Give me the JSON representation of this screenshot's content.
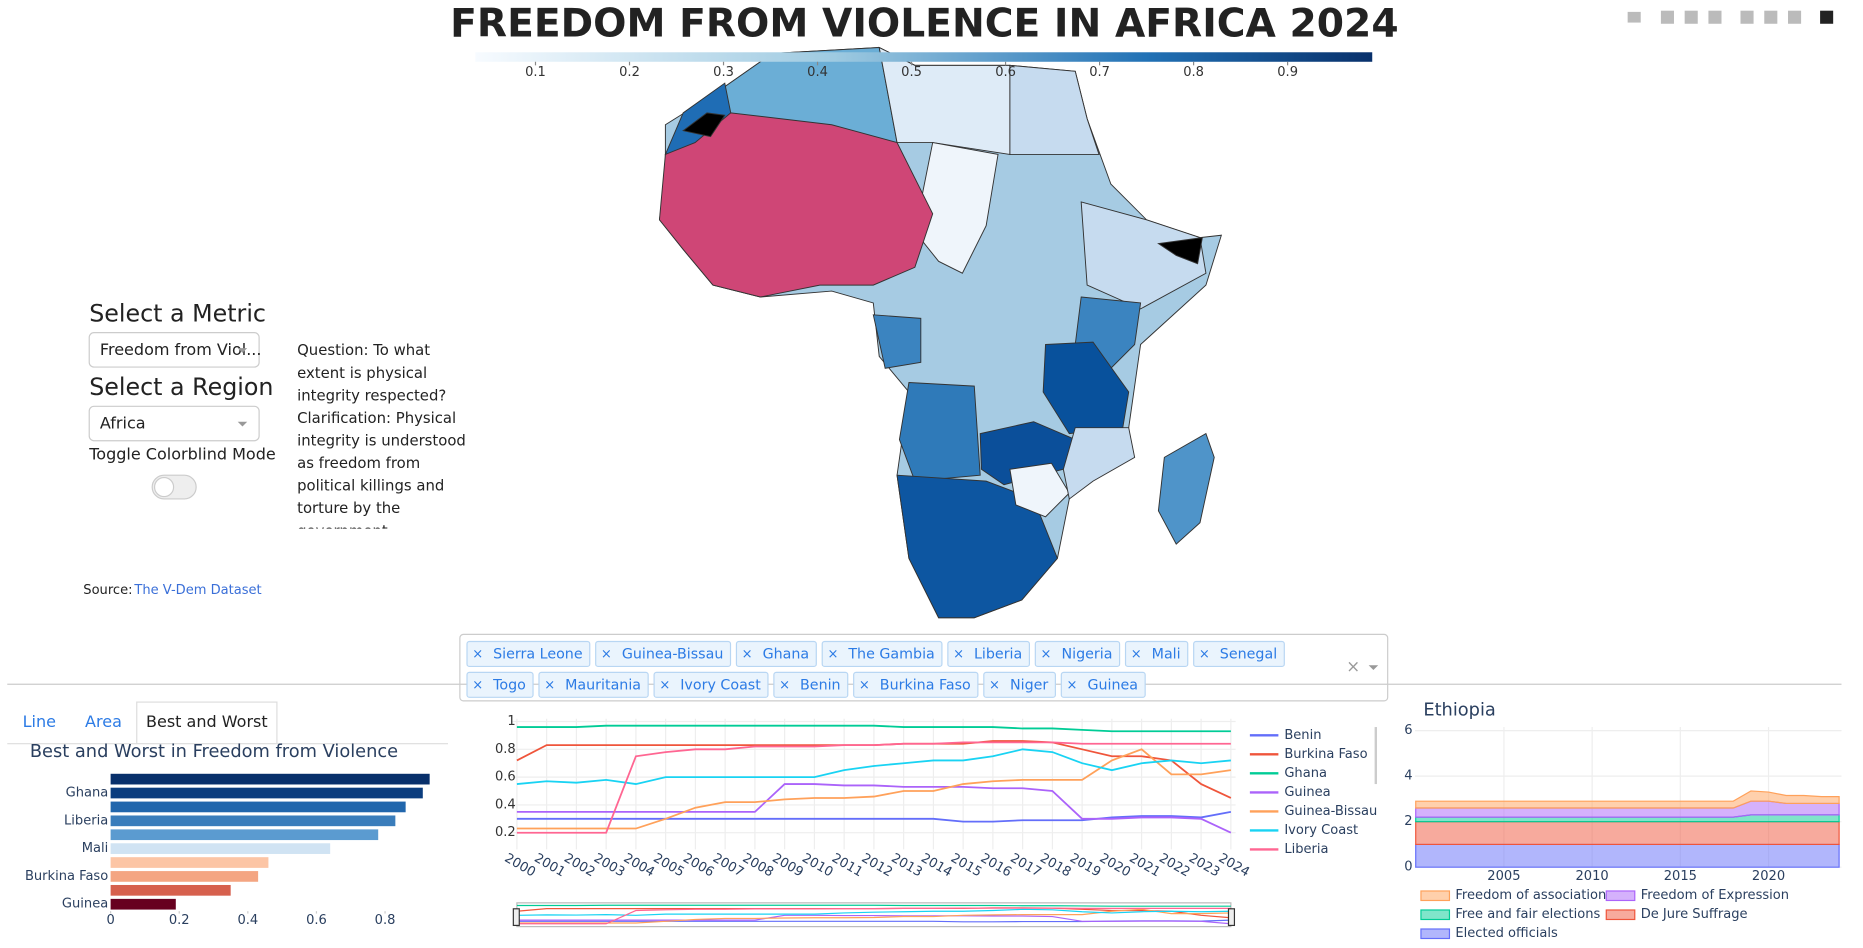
{
  "controls": {
    "metric_label": "Select a Metric",
    "metric_value": "Freedom from Viol...",
    "region_label": "Select a Region",
    "region_value": "Africa",
    "toggle_label": "Toggle Colorblind Mode"
  },
  "question": "Question: To what extent is physical integrity respected? Clarification: Physical integrity is understood as freedom from political killings and torture by the government.",
  "source": {
    "label": "Source:",
    "link": "The V-Dem Dataset"
  },
  "selected_countries": [
    "Sierra Leone",
    "Guinea-Bissau",
    "Ghana",
    "The Gambia",
    "Liberia",
    "Nigeria",
    "Mali",
    "Senegal",
    "Togo",
    "Mauritania",
    "Ivory Coast",
    "Benin",
    "Burkina Faso",
    "Niger",
    "Guinea"
  ],
  "tabs": [
    "Line",
    "Area",
    "Best and Worst"
  ],
  "chart_data": [
    {
      "type": "choropleth",
      "title": "FREEDOM FROM VIOLENCE IN AFRICA 2024",
      "colorbar_lim": [
        0.036,
        0.99
      ],
      "colorbar_ticks": [
        0.1,
        0.2,
        0.3,
        0.4,
        0.5,
        0.6,
        0.7,
        0.8,
        0.9
      ]
    },
    {
      "type": "bar",
      "orientation": "horizontal",
      "title": "Best and Worst in Freedom from Violence",
      "categories": [
        null,
        "Ghana",
        null,
        "Liberia",
        null,
        "Mali",
        null,
        "Burkina Faso",
        null,
        "Guinea"
      ],
      "values": [
        0.93,
        0.91,
        0.86,
        0.83,
        0.78,
        0.64,
        0.46,
        0.43,
        0.35,
        0.19
      ],
      "colors": [
        "#08306b",
        "#0b3d7e",
        "#2166ac",
        "#3a7dbb",
        "#5b9bd0",
        "#d0e3f3",
        "#fcc5a5",
        "#f4a582",
        "#d6604d",
        "#67001f"
      ],
      "xlim": [
        0,
        0.98
      ],
      "xticks": [
        0,
        0.2,
        0.4,
        0.6,
        0.8
      ]
    },
    {
      "type": "line",
      "x": [
        2000,
        2001,
        2002,
        2003,
        2004,
        2005,
        2006,
        2007,
        2008,
        2009,
        2010,
        2011,
        2012,
        2013,
        2014,
        2015,
        2016,
        2017,
        2018,
        2019,
        2020,
        2021,
        2022,
        2023,
        2024
      ],
      "xlim": [
        2000,
        2024
      ],
      "ylim": [
        0.08,
        1.02
      ],
      "yticks": [
        0.2,
        0.4,
        0.6,
        0.8,
        1
      ],
      "grid": true,
      "series": [
        {
          "name": "Benin",
          "color": "#636efa",
          "values": [
            0.3,
            0.3,
            0.3,
            0.3,
            0.3,
            0.3,
            0.3,
            0.3,
            0.3,
            0.3,
            0.3,
            0.3,
            0.3,
            0.3,
            0.3,
            0.28,
            0.28,
            0.29,
            0.29,
            0.29,
            0.31,
            0.32,
            0.32,
            0.31,
            0.35
          ]
        },
        {
          "name": "Burkina Faso",
          "color": "#ef553b",
          "values": [
            0.72,
            0.83,
            0.83,
            0.83,
            0.83,
            0.83,
            0.83,
            0.83,
            0.83,
            0.83,
            0.83,
            0.83,
            0.83,
            0.84,
            0.84,
            0.84,
            0.86,
            0.86,
            0.85,
            0.8,
            0.75,
            0.75,
            0.72,
            0.55,
            0.45
          ]
        },
        {
          "name": "Ghana",
          "color": "#00cc96",
          "values": [
            0.96,
            0.96,
            0.96,
            0.97,
            0.97,
            0.97,
            0.97,
            0.97,
            0.97,
            0.97,
            0.97,
            0.97,
            0.97,
            0.96,
            0.96,
            0.96,
            0.96,
            0.95,
            0.95,
            0.94,
            0.93,
            0.93,
            0.93,
            0.93,
            0.93
          ]
        },
        {
          "name": "Guinea",
          "color": "#ab63fa",
          "values": [
            0.35,
            0.35,
            0.35,
            0.35,
            0.35,
            0.35,
            0.35,
            0.35,
            0.35,
            0.55,
            0.55,
            0.54,
            0.54,
            0.53,
            0.53,
            0.53,
            0.52,
            0.52,
            0.5,
            0.3,
            0.3,
            0.31,
            0.31,
            0.3,
            0.2
          ]
        },
        {
          "name": "Guinea-Bissau",
          "color": "#ffa15a",
          "values": [
            0.23,
            0.23,
            0.23,
            0.23,
            0.23,
            0.3,
            0.38,
            0.42,
            0.42,
            0.44,
            0.45,
            0.45,
            0.46,
            0.5,
            0.5,
            0.55,
            0.57,
            0.58,
            0.58,
            0.58,
            0.72,
            0.8,
            0.62,
            0.62,
            0.65
          ]
        },
        {
          "name": "Ivory Coast",
          "color": "#19d3f3",
          "values": [
            0.55,
            0.57,
            0.56,
            0.58,
            0.55,
            0.6,
            0.6,
            0.6,
            0.6,
            0.6,
            0.6,
            0.65,
            0.68,
            0.7,
            0.72,
            0.72,
            0.75,
            0.8,
            0.78,
            0.7,
            0.65,
            0.7,
            0.72,
            0.7,
            0.72
          ]
        },
        {
          "name": "Liberia",
          "color": "#ff6692",
          "values": [
            0.2,
            0.2,
            0.2,
            0.2,
            0.75,
            0.78,
            0.8,
            0.8,
            0.82,
            0.82,
            0.82,
            0.83,
            0.83,
            0.84,
            0.84,
            0.85,
            0.85,
            0.85,
            0.85,
            0.84,
            0.84,
            0.84,
            0.84,
            0.84,
            0.84
          ]
        }
      ]
    },
    {
      "type": "area",
      "title": "Ethiopia",
      "x": [
        2000,
        2001,
        2002,
        2003,
        2004,
        2005,
        2006,
        2007,
        2008,
        2009,
        2010,
        2011,
        2012,
        2013,
        2014,
        2015,
        2016,
        2017,
        2018,
        2019,
        2020,
        2021,
        2022,
        2023,
        2024
      ],
      "xlim": [
        2000,
        2024
      ],
      "xticks": [
        2005,
        2010,
        2015,
        2020
      ],
      "ylim": [
        0,
        6
      ],
      "yticks": [
        0,
        2,
        4,
        6
      ],
      "grid": true,
      "series": [
        {
          "name": "Elected officials",
          "color": "#636efa",
          "values": [
            1,
            1,
            1,
            1,
            1,
            1,
            1,
            1,
            1,
            1,
            1,
            1,
            1,
            1,
            1,
            1,
            1,
            1,
            1,
            1,
            1,
            1,
            1,
            1,
            1
          ]
        },
        {
          "name": "De Jure Suffrage",
          "color": "#ef553b",
          "values": [
            1,
            1,
            1,
            1,
            1,
            1,
            1,
            1,
            1,
            1,
            1,
            1,
            1,
            1,
            1,
            1,
            1,
            1,
            1,
            1,
            1,
            1,
            1,
            1,
            1
          ]
        },
        {
          "name": "Free and fair elections",
          "color": "#00cc96",
          "values": [
            0.2,
            0.2,
            0.2,
            0.2,
            0.2,
            0.2,
            0.2,
            0.2,
            0.2,
            0.2,
            0.2,
            0.2,
            0.2,
            0.2,
            0.2,
            0.2,
            0.2,
            0.2,
            0.2,
            0.3,
            0.3,
            0.3,
            0.3,
            0.3,
            0.3
          ]
        },
        {
          "name": "Freedom of Expression",
          "color": "#ab63fa",
          "values": [
            0.4,
            0.4,
            0.4,
            0.4,
            0.4,
            0.4,
            0.4,
            0.4,
            0.4,
            0.4,
            0.4,
            0.4,
            0.4,
            0.4,
            0.4,
            0.4,
            0.4,
            0.4,
            0.4,
            0.6,
            0.6,
            0.5,
            0.5,
            0.5,
            0.5
          ]
        },
        {
          "name": "Freedom of association",
          "color": "#ffa15a",
          "values": [
            0.3,
            0.3,
            0.3,
            0.3,
            0.3,
            0.3,
            0.3,
            0.3,
            0.3,
            0.3,
            0.3,
            0.3,
            0.3,
            0.3,
            0.3,
            0.3,
            0.3,
            0.3,
            0.3,
            0.45,
            0.4,
            0.35,
            0.35,
            0.3,
            0.3
          ]
        }
      ]
    }
  ]
}
